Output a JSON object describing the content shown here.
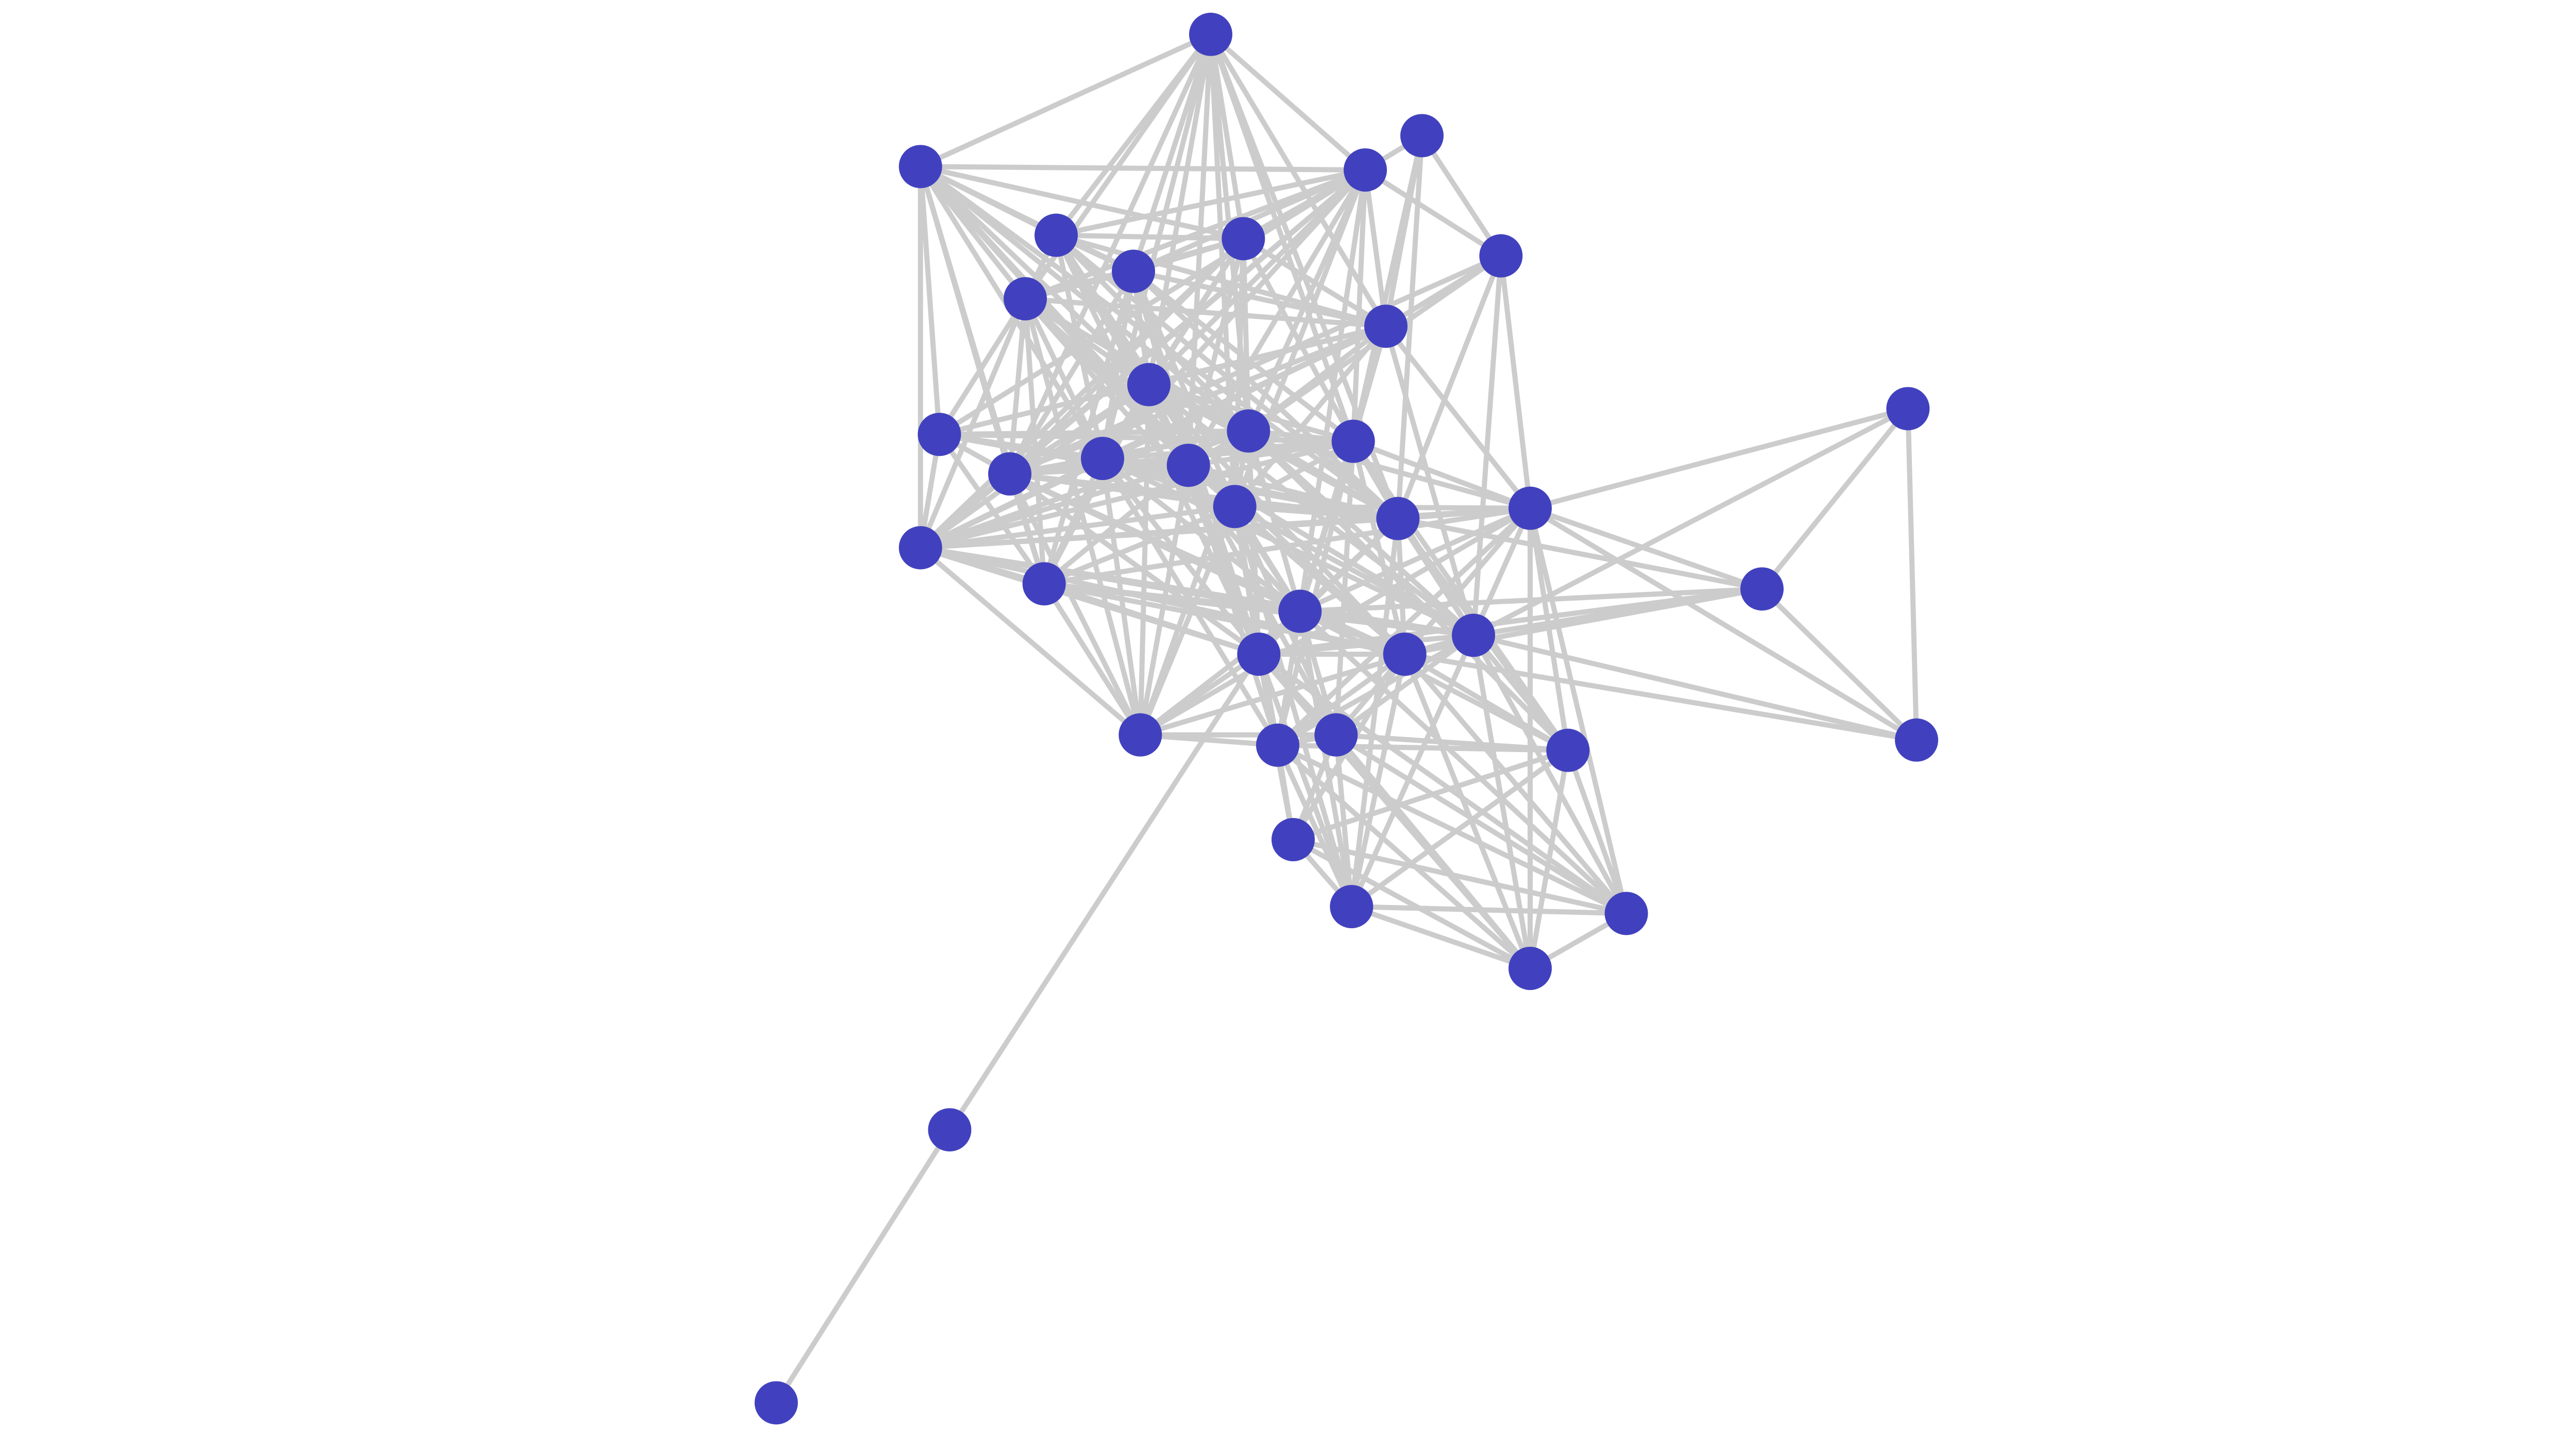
{
  "colors": {
    "node": "#4141bf",
    "edge": "#cccccc",
    "background": "#ffffff"
  },
  "nodes": [
    1,
    2,
    3,
    4,
    5,
    6,
    7,
    8,
    9,
    10,
    11,
    12,
    13,
    14,
    15,
    16,
    17,
    18,
    19,
    20,
    21,
    22,
    23,
    24,
    25,
    26,
    27,
    28,
    29,
    30,
    31,
    32,
    33,
    34,
    35,
    36,
    37,
    38,
    39
  ],
  "edges": [
    [
      1,
      2
    ],
    [
      1,
      3
    ],
    [
      1,
      6
    ],
    [
      1,
      7
    ],
    [
      1,
      8
    ],
    [
      1,
      9
    ],
    [
      1,
      10
    ],
    [
      1,
      11
    ],
    [
      1,
      14
    ],
    [
      1,
      15
    ],
    [
      1,
      16
    ],
    [
      1,
      17
    ],
    [
      1,
      18
    ],
    [
      1,
      19
    ],
    [
      1,
      13
    ],
    [
      2,
      3
    ],
    [
      2,
      6
    ],
    [
      2,
      7
    ],
    [
      2,
      8
    ],
    [
      2,
      9
    ],
    [
      2,
      11
    ],
    [
      2,
      12
    ],
    [
      2,
      13
    ],
    [
      2,
      14
    ],
    [
      2,
      15
    ],
    [
      2,
      16
    ],
    [
      2,
      18
    ],
    [
      2,
      24
    ],
    [
      2,
      25
    ],
    [
      2,
      19
    ],
    [
      3,
      4
    ],
    [
      3,
      5
    ],
    [
      3,
      6
    ],
    [
      3,
      7
    ],
    [
      3,
      8
    ],
    [
      3,
      9
    ],
    [
      3,
      10
    ],
    [
      3,
      11
    ],
    [
      3,
      13
    ],
    [
      3,
      14
    ],
    [
      3,
      15
    ],
    [
      3,
      16
    ],
    [
      3,
      17
    ],
    [
      3,
      18
    ],
    [
      3,
      24
    ],
    [
      3,
      12
    ],
    [
      3,
      26
    ],
    [
      4,
      5
    ],
    [
      4,
      10
    ],
    [
      4,
      19
    ],
    [
      4,
      17
    ],
    [
      5,
      10
    ],
    [
      5,
      20
    ],
    [
      5,
      29
    ],
    [
      5,
      16
    ],
    [
      5,
      13
    ],
    [
      5,
      19
    ],
    [
      6,
      7
    ],
    [
      6,
      8
    ],
    [
      6,
      9
    ],
    [
      6,
      11
    ],
    [
      6,
      14
    ],
    [
      6,
      15
    ],
    [
      6,
      16
    ],
    [
      6,
      18
    ],
    [
      6,
      26
    ],
    [
      6,
      27
    ],
    [
      6,
      19
    ],
    [
      6,
      10
    ],
    [
      7,
      8
    ],
    [
      7,
      9
    ],
    [
      7,
      10
    ],
    [
      7,
      11
    ],
    [
      7,
      14
    ],
    [
      7,
      15
    ],
    [
      7,
      16
    ],
    [
      7,
      17
    ],
    [
      7,
      18
    ],
    [
      7,
      24
    ],
    [
      7,
      13
    ],
    [
      8,
      9
    ],
    [
      8,
      10
    ],
    [
      8,
      11
    ],
    [
      8,
      13
    ],
    [
      8,
      14
    ],
    [
      8,
      15
    ],
    [
      8,
      17
    ],
    [
      8,
      18
    ],
    [
      8,
      19
    ],
    [
      8,
      25
    ],
    [
      8,
      27
    ],
    [
      9,
      10
    ],
    [
      9,
      11
    ],
    [
      9,
      12
    ],
    [
      9,
      13
    ],
    [
      9,
      14
    ],
    [
      9,
      15
    ],
    [
      9,
      16
    ],
    [
      9,
      18
    ],
    [
      9,
      24
    ],
    [
      9,
      25
    ],
    [
      9,
      26
    ],
    [
      9,
      28
    ],
    [
      9,
      30
    ],
    [
      10,
      11
    ],
    [
      10,
      12
    ],
    [
      10,
      13
    ],
    [
      10,
      14
    ],
    [
      10,
      16
    ],
    [
      10,
      17
    ],
    [
      10,
      18
    ],
    [
      10,
      20
    ],
    [
      10,
      24
    ],
    [
      10,
      29
    ],
    [
      10,
      26
    ],
    [
      11,
      13
    ],
    [
      11,
      14
    ],
    [
      11,
      15
    ],
    [
      11,
      16
    ],
    [
      11,
      17
    ],
    [
      11,
      18
    ],
    [
      11,
      19
    ],
    [
      11,
      24
    ],
    [
      11,
      25
    ],
    [
      11,
      27
    ],
    [
      11,
      28
    ],
    [
      11,
      29
    ],
    [
      11,
      30
    ],
    [
      12,
      13
    ],
    [
      12,
      14
    ],
    [
      12,
      24
    ],
    [
      12,
      16
    ],
    [
      12,
      17
    ],
    [
      12,
      19
    ],
    [
      12,
      25
    ],
    [
      13,
      14
    ],
    [
      13,
      15
    ],
    [
      13,
      16
    ],
    [
      13,
      17
    ],
    [
      13,
      18
    ],
    [
      13,
      19
    ],
    [
      13,
      24
    ],
    [
      13,
      25
    ],
    [
      13,
      26
    ],
    [
      13,
      27
    ],
    [
      13,
      28
    ],
    [
      13,
      30
    ],
    [
      14,
      15
    ],
    [
      14,
      16
    ],
    [
      14,
      17
    ],
    [
      14,
      18
    ],
    [
      14,
      19
    ],
    [
      14,
      24
    ],
    [
      14,
      25
    ],
    [
      14,
      26
    ],
    [
      14,
      27
    ],
    [
      14,
      29
    ],
    [
      14,
      30
    ],
    [
      14,
      31
    ],
    [
      15,
      16
    ],
    [
      15,
      17
    ],
    [
      15,
      18
    ],
    [
      15,
      19
    ],
    [
      15,
      24
    ],
    [
      15,
      25
    ],
    [
      15,
      27
    ],
    [
      15,
      28
    ],
    [
      15,
      29
    ],
    [
      15,
      30
    ],
    [
      15,
      31
    ],
    [
      15,
      32
    ],
    [
      16,
      17
    ],
    [
      16,
      18
    ],
    [
      16,
      19
    ],
    [
      16,
      20
    ],
    [
      16,
      24
    ],
    [
      16,
      26
    ],
    [
      16,
      27
    ],
    [
      16,
      29
    ],
    [
      16,
      30
    ],
    [
      16,
      33
    ],
    [
      17,
      18
    ],
    [
      17,
      19
    ],
    [
      17,
      20
    ],
    [
      17,
      24
    ],
    [
      17,
      26
    ],
    [
      17,
      28
    ],
    [
      17,
      29
    ],
    [
      17,
      31
    ],
    [
      17,
      32
    ],
    [
      17,
      33
    ],
    [
      18,
      19
    ],
    [
      18,
      20
    ],
    [
      18,
      24
    ],
    [
      18,
      25
    ],
    [
      18,
      26
    ],
    [
      18,
      27
    ],
    [
      18,
      28
    ],
    [
      18,
      29
    ],
    [
      18,
      30
    ],
    [
      18,
      31
    ],
    [
      18,
      32
    ],
    [
      18,
      34
    ],
    [
      18,
      35
    ],
    [
      19,
      20
    ],
    [
      19,
      24
    ],
    [
      19,
      26
    ],
    [
      19,
      27
    ],
    [
      19,
      28
    ],
    [
      19,
      29
    ],
    [
      19,
      22
    ],
    [
      19,
      33
    ],
    [
      19,
      35
    ],
    [
      20,
      21
    ],
    [
      20,
      22
    ],
    [
      20,
      23
    ],
    [
      20,
      24
    ],
    [
      20,
      25
    ],
    [
      20,
      26
    ],
    [
      20,
      28
    ],
    [
      20,
      29
    ],
    [
      20,
      30
    ],
    [
      20,
      33
    ],
    [
      20,
      36
    ],
    [
      20,
      37
    ],
    [
      20,
      31
    ],
    [
      21,
      22
    ],
    [
      21,
      23
    ],
    [
      21,
      29
    ],
    [
      22,
      23
    ],
    [
      22,
      29
    ],
    [
      22,
      28
    ],
    [
      22,
      26
    ],
    [
      22,
      27
    ],
    [
      23,
      29
    ],
    [
      23,
      28
    ],
    [
      24,
      25
    ],
    [
      24,
      26
    ],
    [
      24,
      27
    ],
    [
      24,
      28
    ],
    [
      24,
      29
    ],
    [
      24,
      30
    ],
    [
      25,
      26
    ],
    [
      25,
      27
    ],
    [
      25,
      30
    ],
    [
      25,
      28
    ],
    [
      25,
      29
    ],
    [
      26,
      27
    ],
    [
      26,
      28
    ],
    [
      26,
      29
    ],
    [
      26,
      30
    ],
    [
      26,
      31
    ],
    [
      26,
      32
    ],
    [
      26,
      33
    ],
    [
      26,
      36
    ],
    [
      26,
      35
    ],
    [
      27,
      28
    ],
    [
      27,
      29
    ],
    [
      27,
      30
    ],
    [
      27,
      31
    ],
    [
      27,
      32
    ],
    [
      27,
      34
    ],
    [
      27,
      35
    ],
    [
      27,
      38
    ],
    [
      27,
      36
    ],
    [
      27,
      37
    ],
    [
      28,
      29
    ],
    [
      28,
      31
    ],
    [
      28,
      32
    ],
    [
      28,
      33
    ],
    [
      28,
      34
    ],
    [
      28,
      35
    ],
    [
      28,
      36
    ],
    [
      28,
      37
    ],
    [
      29,
      31
    ],
    [
      29,
      32
    ],
    [
      29,
      33
    ],
    [
      29,
      35
    ],
    [
      29,
      36
    ],
    [
      29,
      37
    ],
    [
      29,
      30
    ],
    [
      30,
      31
    ],
    [
      30,
      32
    ],
    [
      31,
      32
    ],
    [
      31,
      33
    ],
    [
      31,
      34
    ],
    [
      31,
      35
    ],
    [
      31,
      36
    ],
    [
      31,
      37
    ],
    [
      32,
      33
    ],
    [
      32,
      35
    ],
    [
      32,
      36
    ],
    [
      32,
      37
    ],
    [
      32,
      34
    ],
    [
      33,
      35
    ],
    [
      33,
      36
    ],
    [
      33,
      37
    ],
    [
      33,
      34
    ],
    [
      34,
      35
    ],
    [
      34,
      37
    ],
    [
      34,
      36
    ],
    [
      35,
      36
    ],
    [
      35,
      37
    ],
    [
      36,
      37
    ],
    [
      38,
      39
    ]
  ]
}
